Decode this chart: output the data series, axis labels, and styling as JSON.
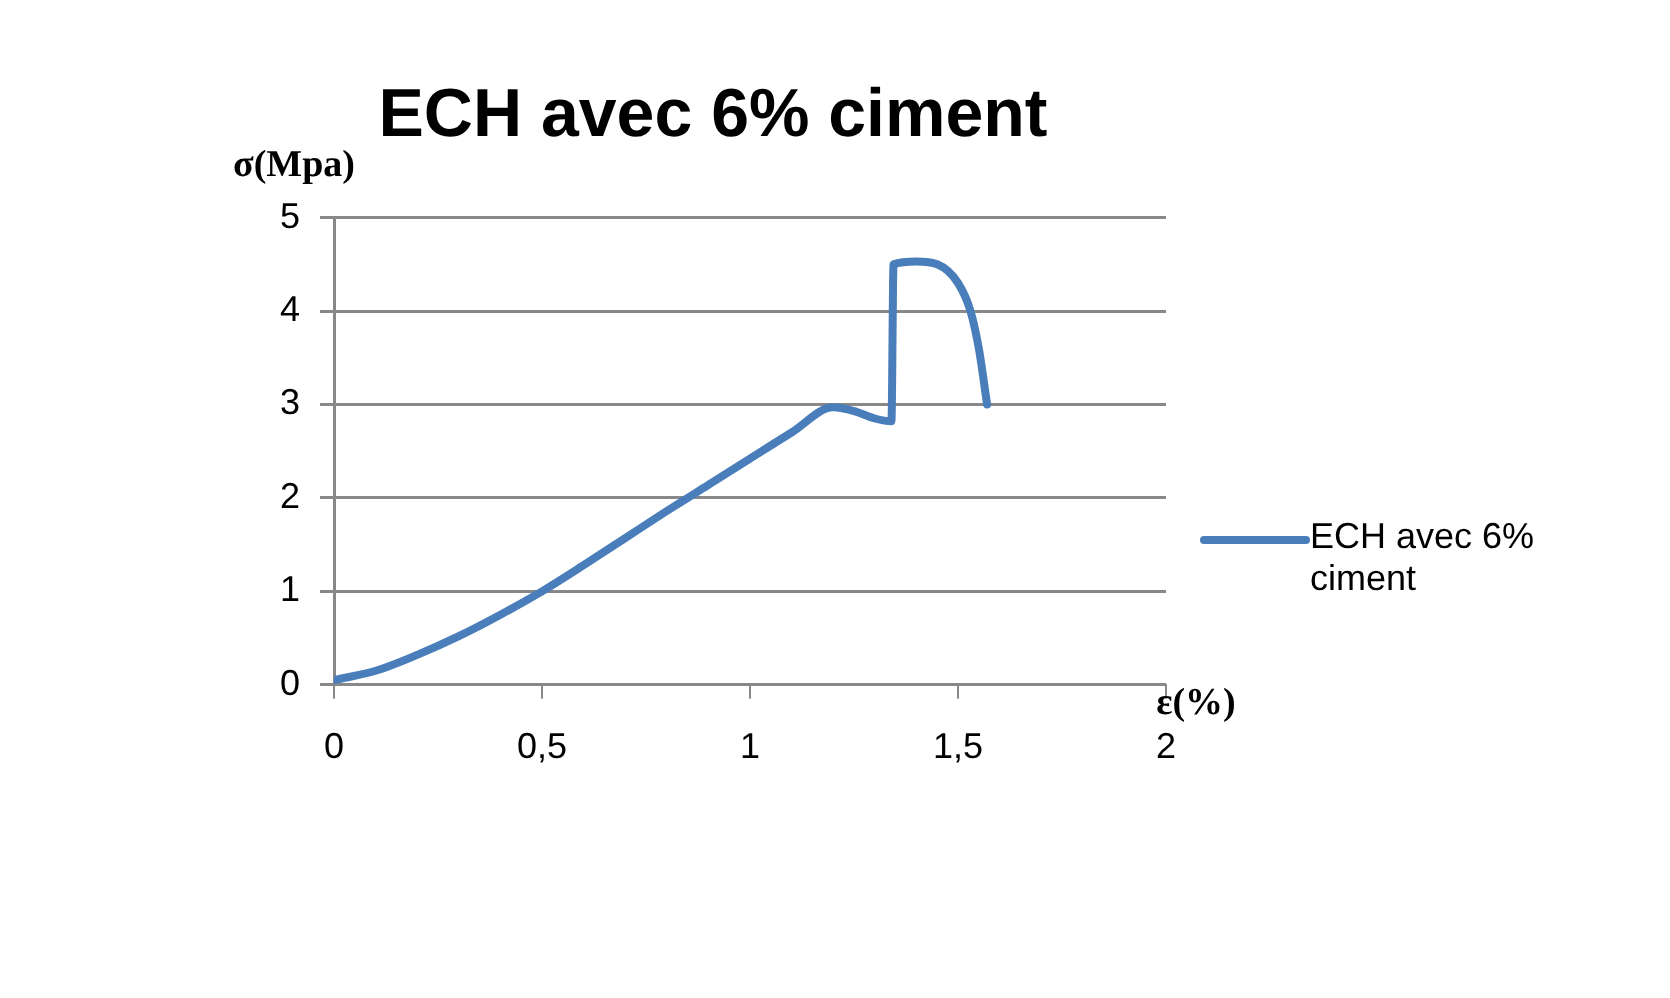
{
  "chart_data": {
    "type": "line",
    "title": "ECH avec 6% ciment",
    "xlabel": "ε(%)",
    "ylabel": "σ(Mpa)",
    "x": [
      0,
      0.1,
      0.2,
      0.3,
      0.4,
      0.5,
      0.6,
      0.7,
      0.8,
      0.9,
      1.0,
      1.1,
      1.2,
      1.25,
      1.3,
      1.34,
      1.345,
      1.4,
      1.45,
      1.5,
      1.53,
      1.55,
      1.57
    ],
    "series": [
      {
        "name": "ECH avec 6% ciment",
        "color": "#4a7ebb",
        "values": [
          0.05,
          0.15,
          0.32,
          0.52,
          0.75,
          1.0,
          1.28,
          1.57,
          1.86,
          2.14,
          2.42,
          2.7,
          2.97,
          2.93,
          2.85,
          2.82,
          4.5,
          4.53,
          4.5,
          4.3,
          4.0,
          3.6,
          3.0
        ]
      }
    ],
    "xlim": [
      0,
      2
    ],
    "xticks": [
      0,
      {
        "value": 0.5,
        "label": "0,5"
      },
      1,
      {
        "value": 1.5,
        "label": "1,5"
      },
      2
    ],
    "ylim": [
      0,
      5
    ],
    "yticks": [
      0,
      1,
      2,
      3,
      4,
      5
    ],
    "grid": "y",
    "legend": "right",
    "marker": "none",
    "line_style": "solid"
  }
}
